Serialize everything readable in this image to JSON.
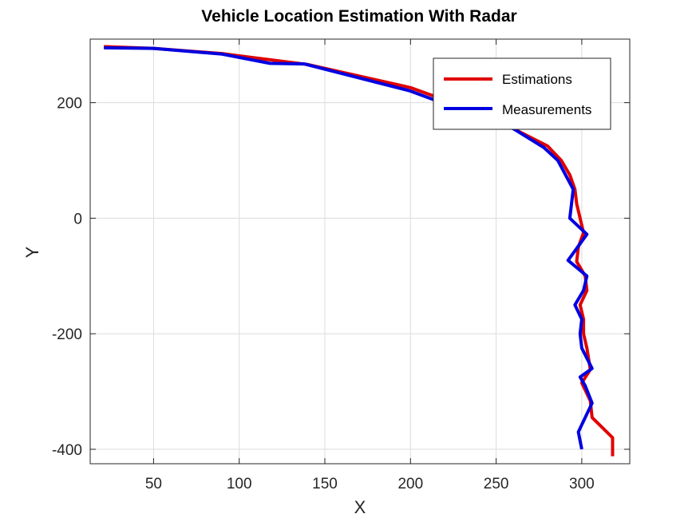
{
  "chart_data": {
    "type": "line",
    "title": "Vehicle Location Estimation With Radar",
    "xlabel": "X",
    "ylabel": "Y",
    "xlim": [
      13,
      328
    ],
    "ylim": [
      -425,
      310
    ],
    "xticks": [
      50,
      100,
      150,
      200,
      250,
      300
    ],
    "yticks": [
      -400,
      -200,
      0,
      200
    ],
    "xtick_labels": [
      "50",
      "100",
      "150",
      "200",
      "250",
      "300"
    ],
    "ytick_labels": [
      "-400",
      "-200",
      "0",
      "200"
    ],
    "grid": true,
    "legend": {
      "position": "top-right",
      "entries": [
        "Estimations",
        "Measurements"
      ]
    },
    "series": [
      {
        "name": "Estimations",
        "color": "#e00000",
        "points": [
          [
            21,
            297
          ],
          [
            50,
            294
          ],
          [
            90,
            285
          ],
          [
            100,
            281
          ],
          [
            140,
            266
          ],
          [
            200,
            226
          ],
          [
            230,
            194
          ],
          [
            260,
            155
          ],
          [
            280,
            125
          ],
          [
            288,
            100
          ],
          [
            293,
            75
          ],
          [
            296,
            50
          ],
          [
            297,
            25
          ],
          [
            299,
            0
          ],
          [
            301,
            -25
          ],
          [
            298,
            -50
          ],
          [
            297,
            -75
          ],
          [
            302,
            -100
          ],
          [
            303,
            -125
          ],
          [
            299,
            -150
          ],
          [
            301,
            -175
          ],
          [
            301,
            -200
          ],
          [
            303,
            -225
          ],
          [
            305,
            -262
          ],
          [
            300,
            -285
          ],
          [
            305,
            -316
          ],
          [
            306,
            -345
          ],
          [
            318,
            -380
          ],
          [
            318,
            -412
          ]
        ]
      },
      {
        "name": "Measurements",
        "color": "#0000e0",
        "points": [
          [
            21,
            295
          ],
          [
            50,
            294
          ],
          [
            90,
            284
          ],
          [
            118,
            268
          ],
          [
            138,
            267
          ],
          [
            200,
            220
          ],
          [
            230,
            187
          ],
          [
            260,
            155
          ],
          [
            278,
            122
          ],
          [
            286,
            100
          ],
          [
            295,
            50
          ],
          [
            293,
            0
          ],
          [
            303,
            -28
          ],
          [
            292,
            -73
          ],
          [
            303,
            -100
          ],
          [
            301,
            -125
          ],
          [
            296,
            -150
          ],
          [
            300,
            -175
          ],
          [
            299,
            -200
          ],
          [
            300,
            -225
          ],
          [
            306,
            -260
          ],
          [
            299,
            -275
          ],
          [
            302,
            -290
          ],
          [
            306,
            -320
          ],
          [
            298,
            -370
          ],
          [
            300,
            -400
          ]
        ]
      }
    ]
  }
}
